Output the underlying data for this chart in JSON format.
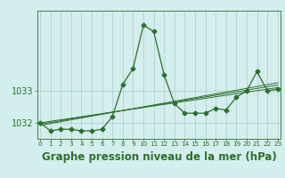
{
  "hours": [
    0,
    1,
    2,
    3,
    4,
    5,
    6,
    7,
    8,
    9,
    10,
    11,
    12,
    13,
    14,
    15,
    16,
    17,
    18,
    19,
    20,
    21,
    22,
    23
  ],
  "pressure_main": [
    1032.0,
    1031.75,
    1031.8,
    1031.8,
    1031.75,
    1031.75,
    1031.8,
    1032.2,
    1033.2,
    1033.7,
    1035.05,
    1034.85,
    1033.5,
    1032.6,
    1032.3,
    1032.3,
    1032.3,
    1032.45,
    1032.4,
    1032.8,
    1033.0,
    1033.6,
    1033.0,
    1033.05
  ],
  "trend_lines": [
    {
      "x": [
        0,
        23
      ],
      "y": [
        1031.92,
        1033.25
      ]
    },
    {
      "x": [
        0,
        23
      ],
      "y": [
        1031.96,
        1033.18
      ]
    },
    {
      "x": [
        0,
        23
      ],
      "y": [
        1032.0,
        1033.1
      ]
    }
  ],
  "ylim": [
    1031.5,
    1035.5
  ],
  "yticks": [
    1032,
    1033
  ],
  "xlim": [
    -0.3,
    23.3
  ],
  "xlabel": "Graphe pression niveau de la mer (hPa)",
  "line_color": "#2d6e2d",
  "marker": "D",
  "marker_size": 2.5,
  "bg_color": "#d4eeed",
  "grid_color": "#a8cece",
  "xlabel_fontsize": 8.5,
  "ytick_fontsize": 7,
  "xtick_fontsize": 5.2
}
